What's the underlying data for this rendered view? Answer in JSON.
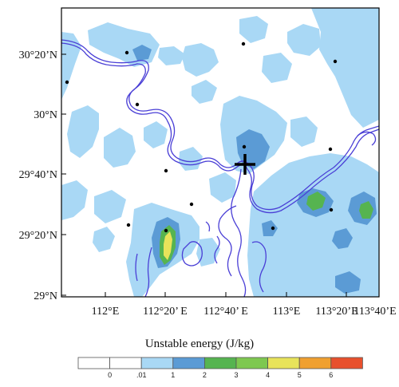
{
  "map": {
    "lon_labels": [
      "112°E",
      "112°20’ E",
      "112°40’ E",
      "113°E",
      "113°20’E",
      "113°40’E"
    ],
    "lat_labels": [
      "30°20’N",
      "30°N",
      "29°40’N",
      "29°20’N",
      "29°N"
    ]
  },
  "legend": {
    "title": "Unstable energy (J/kg)",
    "tick_labels": [
      "0",
      ".01",
      "1",
      "2",
      "3",
      "4",
      "5",
      "6"
    ],
    "colors": [
      "#ffffff",
      "#ffffff",
      "#a9d8f5",
      "#5b9bd5",
      "#56b450",
      "#7ec850",
      "#e8e35a",
      "#f0a030",
      "#e8502d"
    ]
  },
  "colors": {
    "river": "#4a3fd6",
    "light_blue": "#a9d8f5",
    "mid_blue": "#5b9bd5",
    "green": "#56b450",
    "yellow": "#e8e35a"
  }
}
